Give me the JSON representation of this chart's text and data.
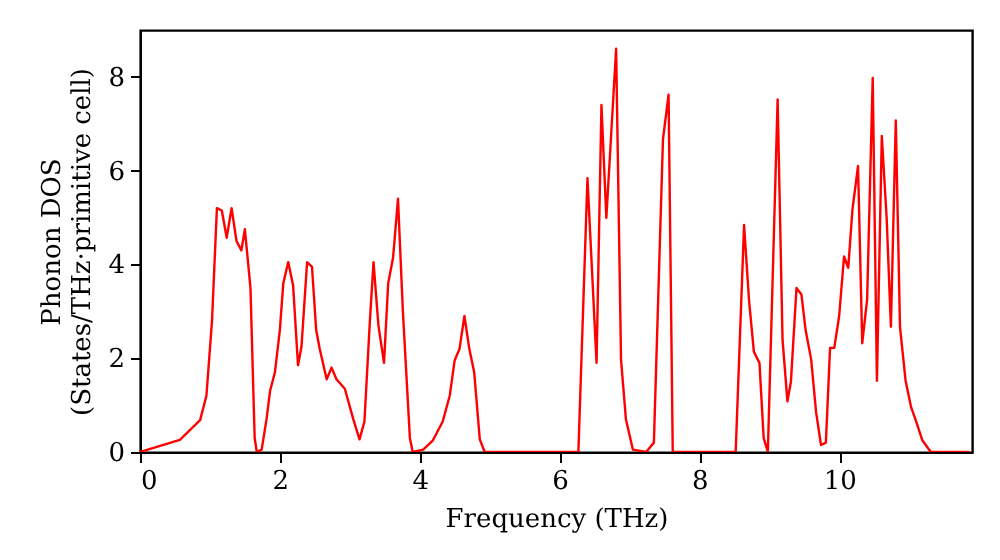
{
  "chart_data": {
    "type": "line",
    "xlabel": "Frequency (THz)",
    "ylabel": "Phonon DOS\n(States/THz·primitive cell)",
    "xlim": [
      0,
      11.9
    ],
    "ylim": [
      0,
      9
    ],
    "xticks": [
      0,
      2,
      4,
      6,
      8,
      10
    ],
    "yticks": [
      0,
      2,
      4,
      6,
      8
    ],
    "grid": false,
    "marker": "none",
    "line_style": "solid",
    "series": [
      {
        "color": "#ff0000",
        "x": [
          0,
          0.57,
          0.86,
          0.95,
          1.03,
          1.1,
          1.17,
          1.24,
          1.31,
          1.38,
          1.45,
          1.5,
          1.58,
          1.64,
          1.67,
          1.74,
          1.81,
          1.86,
          1.93,
          2.0,
          2.05,
          2.12,
          2.19,
          2.26,
          2.31,
          2.39,
          2.46,
          2.52,
          2.57,
          2.67,
          2.74,
          2.81,
          2.93,
          3.05,
          3.14,
          3.21,
          3.29,
          3.34,
          3.41,
          3.49,
          3.55,
          3.62,
          3.69,
          3.76,
          3.86,
          3.9,
          4.05,
          4.19,
          4.33,
          4.43,
          4.5,
          4.57,
          4.64,
          4.71,
          4.78,
          4.86,
          4.93,
          6.2,
          6.27,
          6.4,
          6.53,
          6.6,
          6.67,
          6.81,
          6.88,
          6.95,
          7.05,
          7.24,
          7.35,
          7.48,
          7.56,
          7.62,
          8.52,
          8.64,
          8.71,
          8.78,
          8.86,
          8.92,
          8.98,
          9.12,
          9.19,
          9.26,
          9.31,
          9.39,
          9.46,
          9.52,
          9.6,
          9.67,
          9.74,
          9.81,
          9.87,
          9.93,
          10.0,
          10.07,
          10.13,
          10.19,
          10.27,
          10.33,
          10.4,
          10.48,
          10.54,
          10.61,
          10.68,
          10.74,
          10.81,
          10.87,
          10.95,
          11.03,
          11.09,
          11.19,
          11.31,
          11.86
        ],
        "values": [
          0,
          0.26,
          0.68,
          1.2,
          2.8,
          5.2,
          5.15,
          4.57,
          5.2,
          4.5,
          4.3,
          4.75,
          3.5,
          0.3,
          0,
          0.05,
          0.7,
          1.3,
          1.7,
          2.6,
          3.6,
          4.05,
          3.55,
          1.85,
          2.25,
          4.05,
          3.95,
          2.6,
          2.2,
          1.55,
          1.8,
          1.55,
          1.35,
          0.7,
          0.27,
          0.65,
          2.85,
          4.05,
          2.7,
          1.9,
          3.6,
          4.15,
          5.4,
          3.0,
          0.3,
          0,
          0.05,
          0.25,
          0.65,
          1.2,
          1.95,
          2.2,
          2.9,
          2.2,
          1.7,
          0.27,
          0,
          0,
          0,
          5.84,
          1.9,
          7.4,
          4.99,
          8.6,
          1.97,
          0.7,
          0.05,
          0,
          0.2,
          6.67,
          7.62,
          0,
          0,
          4.84,
          3.25,
          2.14,
          1.9,
          0.3,
          0,
          7.52,
          2.4,
          1.08,
          1.5,
          3.5,
          3.36,
          2.6,
          1.97,
          0.85,
          0.15,
          0.2,
          2.22,
          2.22,
          2.9,
          4.17,
          3.93,
          5.17,
          6.1,
          2.32,
          3.25,
          7.98,
          1.52,
          6.74,
          4.97,
          2.67,
          7.07,
          2.67,
          1.52,
          0.95,
          0.7,
          0.25,
          0,
          0
        ]
      }
    ]
  }
}
